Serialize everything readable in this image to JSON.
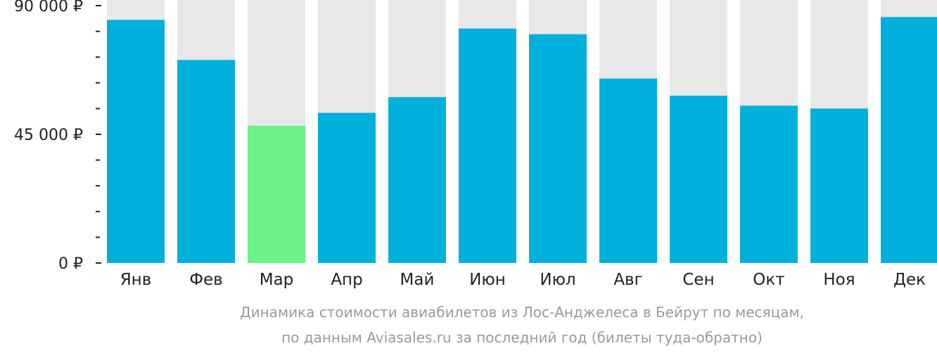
{
  "chart_data": {
    "type": "bar",
    "categories": [
      "Янв",
      "Фев",
      "Мар",
      "Апр",
      "Май",
      "Июн",
      "Июл",
      "Авг",
      "Сен",
      "Окт",
      "Ноя",
      "Дек"
    ],
    "values": [
      85000,
      71000,
      48000,
      52500,
      58000,
      82000,
      80000,
      64500,
      58500,
      55000,
      54000,
      86000
    ],
    "highlight_index": 2,
    "ylim": [
      0,
      90000
    ],
    "yticks": [
      {
        "value": 0,
        "label": "0 ₽"
      },
      {
        "value": 45000,
        "label": "45 000 ₽"
      },
      {
        "value": 90000,
        "label": "90 000 ₽"
      }
    ],
    "minor_tick_step": 9000,
    "colors": {
      "bar": "#00b0dc",
      "highlight": "#6cf286",
      "background_bar": "#e8e8e8",
      "axis": "#222222"
    },
    "caption_line1": "Динамика стоимости авиабилетов из Лос-Анджелеса в Бейрут по месяцам,",
    "caption_line2": "по данным Aviasales.ru за последний год (билеты туда-обратно)"
  }
}
